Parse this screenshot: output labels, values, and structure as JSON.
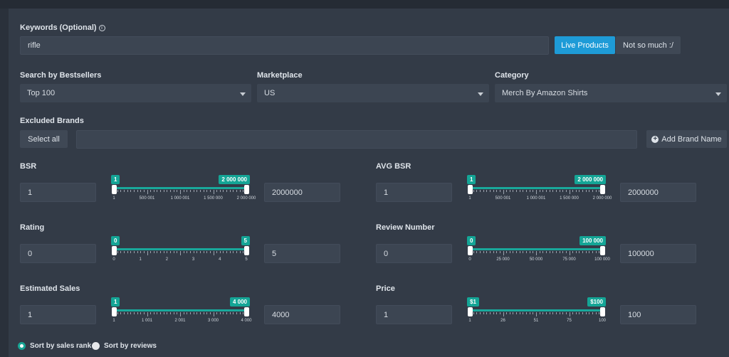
{
  "keywords": {
    "label": "Keywords (Optional)",
    "info_icon": "info-icon",
    "value": "rifle"
  },
  "mode_buttons": {
    "live": "Live Products",
    "not_so_much": "Not so much :/"
  },
  "bestsellers": {
    "label": "Search by Bestsellers",
    "value": "Top 100"
  },
  "marketplace": {
    "label": "Marketplace",
    "value": "US"
  },
  "category": {
    "label": "Category",
    "value": "Merch By Amazon Shirts"
  },
  "excluded_brands": {
    "label": "Excluded Brands",
    "select_all": "Select all",
    "input_value": "",
    "add_label": "Add Brand Name"
  },
  "colors": {
    "accent": "#14a596",
    "blue": "#1e9bd7",
    "panel": "#333b47",
    "field": "#3c4552"
  },
  "filters": {
    "bsr": {
      "label": "BSR",
      "min": "1",
      "max": "2000000",
      "min_badge": "1",
      "max_badge": "2 000 000",
      "ticks": [
        "1",
        "500 001",
        "1 000 001",
        "1 500 000",
        "2 000 000"
      ],
      "range": [
        1,
        2000000
      ],
      "selected": [
        1,
        2000000
      ]
    },
    "avg_bsr": {
      "label": "AVG BSR",
      "min": "1",
      "max": "2000000",
      "min_badge": "1",
      "max_badge": "2 000 000",
      "ticks": [
        "1",
        "500 001",
        "1 000 001",
        "1 500 000",
        "2 000 000"
      ],
      "range": [
        1,
        2000000
      ],
      "selected": [
        1,
        2000000
      ]
    },
    "rating": {
      "label": "Rating",
      "min": "0",
      "max": "5",
      "min_badge": "0",
      "max_badge": "5",
      "ticks": [
        "0",
        "1",
        "2",
        "3",
        "4",
        "5"
      ],
      "range": [
        0,
        5
      ],
      "selected": [
        0,
        5
      ]
    },
    "review_number": {
      "label": "Review Number",
      "min": "0",
      "max": "100000",
      "min_badge": "0",
      "max_badge": "100 000",
      "ticks": [
        "0",
        "25 000",
        "50 000",
        "75 000",
        "100 000"
      ],
      "range": [
        0,
        100000
      ],
      "selected": [
        0,
        100000
      ]
    },
    "estimated_sales": {
      "label": "Estimated Sales",
      "min": "1",
      "max": "4000",
      "min_badge": "1",
      "max_badge": "4 000",
      "ticks": [
        "1",
        "1 001",
        "2 001",
        "3 000",
        "4 000"
      ],
      "range": [
        1,
        4000
      ],
      "selected": [
        1,
        4000
      ]
    },
    "price": {
      "label": "Price",
      "min": "1",
      "max": "100",
      "min_badge": "$1",
      "max_badge": "$100",
      "ticks": [
        "1",
        "26",
        "51",
        "75",
        "100"
      ],
      "range": [
        1,
        100
      ],
      "selected": [
        1,
        100
      ]
    }
  },
  "sort": {
    "by_sales_rank": "Sort by sales rank",
    "by_reviews": "Sort by reviews",
    "selected": "by_sales_rank"
  }
}
